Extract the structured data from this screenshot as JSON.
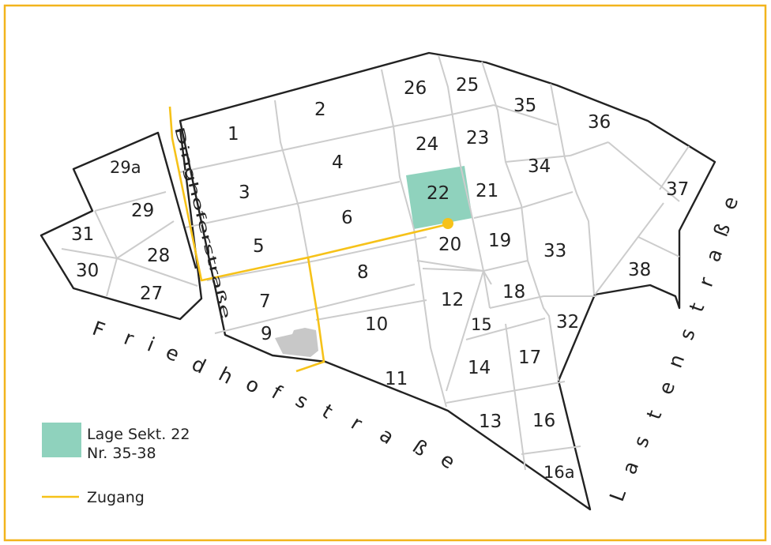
{
  "colors": {
    "frame": "#f2b41c",
    "highlight": "#8fd2bd",
    "access_path": "#f6c219",
    "chapel": "#c8c8c8"
  },
  "sections": {
    "s1": "1",
    "s2": "2",
    "s3": "3",
    "s4": "4",
    "s5": "5",
    "s6": "6",
    "s7": "7",
    "s8": "8",
    "s9": "9",
    "s10": "10",
    "s11": "11",
    "s12": "12",
    "s13": "13",
    "s14": "14",
    "s15": "15",
    "s16": "16",
    "s16a": "16a",
    "s17": "17",
    "s18": "18",
    "s19": "19",
    "s20": "20",
    "s21": "21",
    "s22": "22",
    "s23": "23",
    "s24": "24",
    "s25": "25",
    "s26": "26",
    "s27": "27",
    "s28": "28",
    "s29": "29",
    "s29a": "29a",
    "s30": "30",
    "s31": "31",
    "s32": "32",
    "s33": "33",
    "s34": "34",
    "s35": "35",
    "s36": "36",
    "s37": "37",
    "s38": "38"
  },
  "streets": {
    "friedhof": [
      "F",
      "r",
      "i",
      "e",
      "d",
      "h",
      "o",
      "f",
      "s",
      "t",
      "r",
      "a",
      "ß",
      "e"
    ],
    "lasten": [
      "L",
      "a",
      "s",
      "t",
      "e",
      "n",
      "s",
      "t",
      "r",
      "a",
      "ß",
      "e"
    ],
    "dinghofer": "Dinghoferstraße"
  },
  "legend": {
    "location_line1": "Lage Sekt. 22",
    "location_line2": "Nr. 35-38",
    "access": "Zugang"
  }
}
